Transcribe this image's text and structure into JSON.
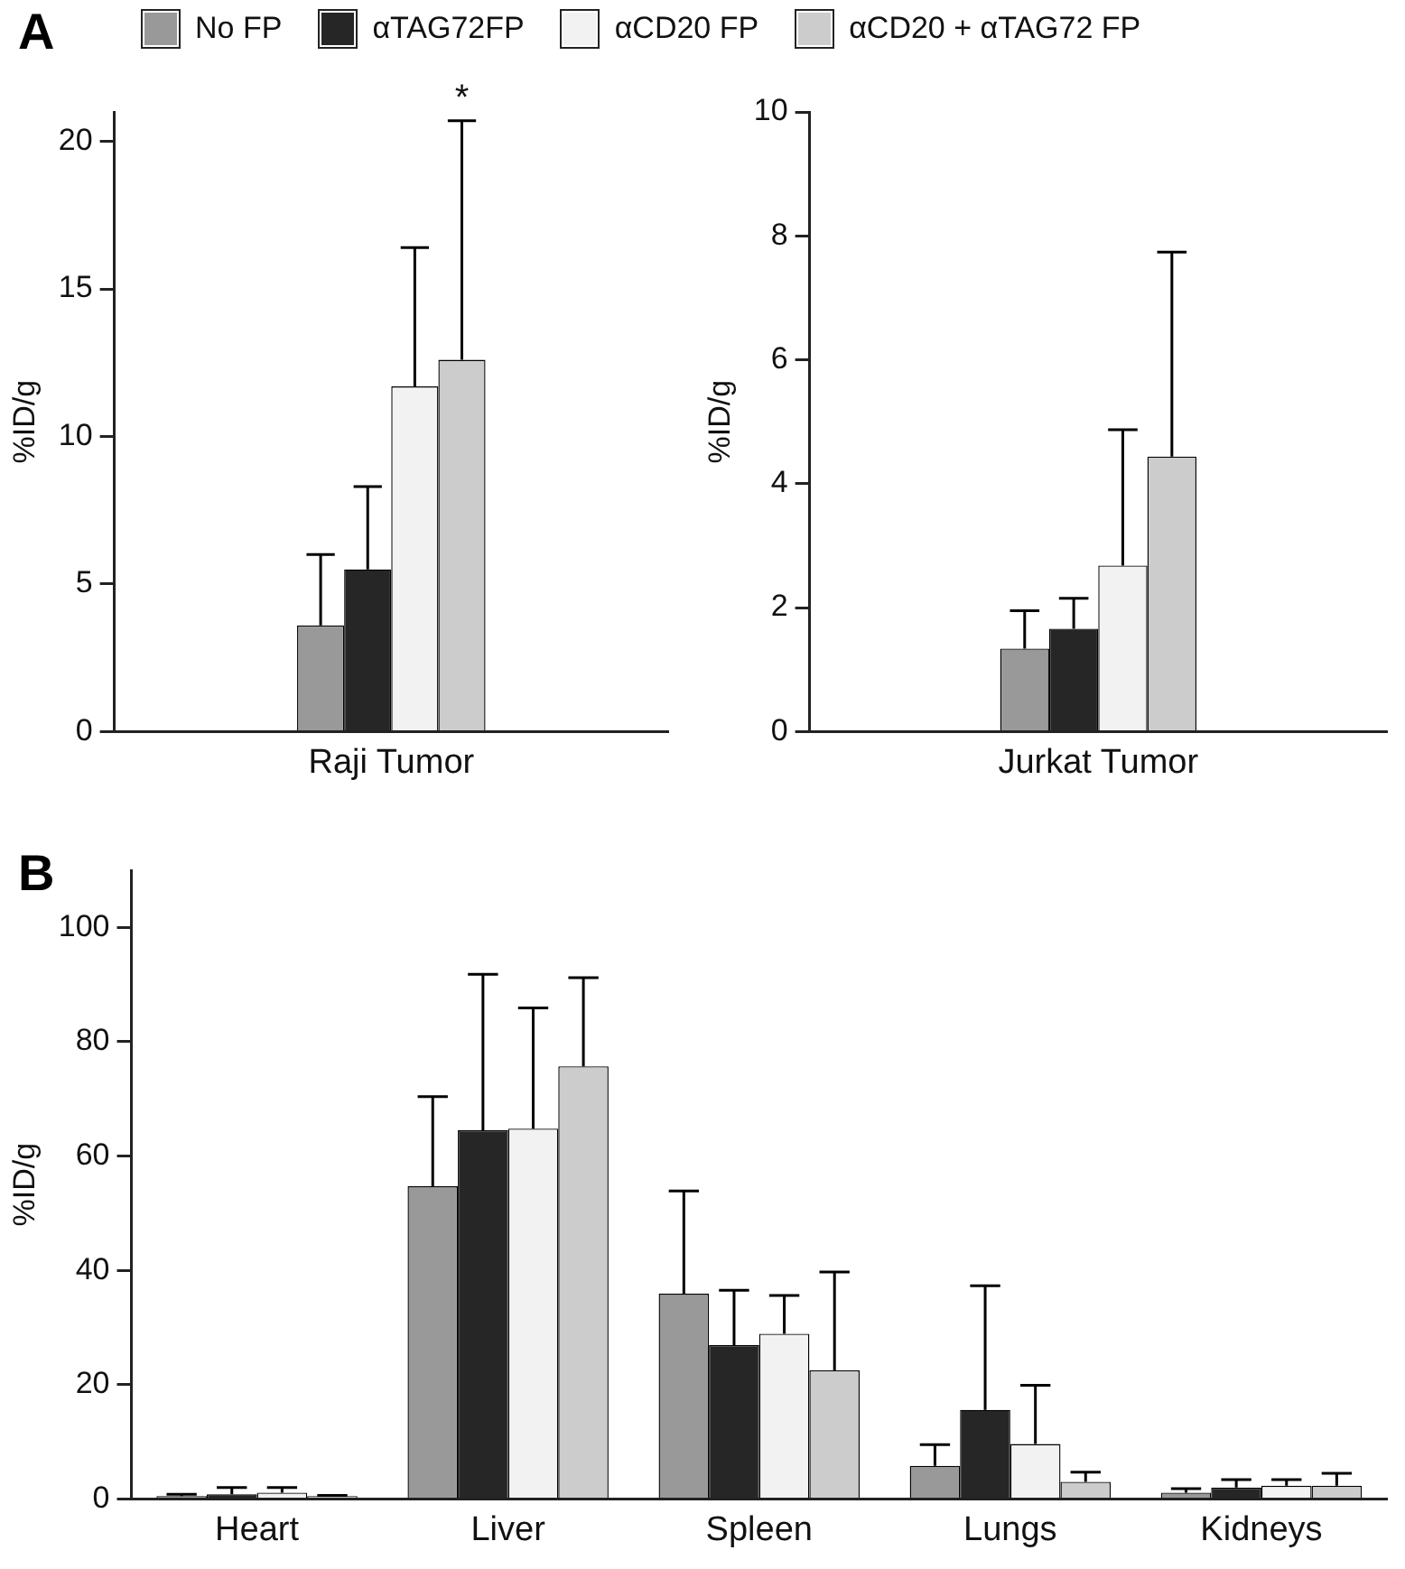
{
  "chart_data": [
    {
      "type": "bar",
      "ylabel": "%ID/g",
      "legend": "top",
      "annotations": [
        "A",
        "*"
      ],
      "categories": [
        "Raji Tumor"
      ],
      "ylim": [
        0,
        21
      ],
      "yticks": [
        0,
        5,
        10,
        15,
        20
      ],
      "series": [
        {
          "name": "No FP",
          "color": "#999999",
          "values": [
            3.6
          ],
          "errors": [
            [
              3.6,
              6.0
            ]
          ]
        },
        {
          "name": "αTAG72FP",
          "color": "#262626",
          "values": [
            5.5
          ],
          "errors": [
            [
              5.5,
              8.3
            ]
          ]
        },
        {
          "name": "αCD20 FP",
          "color": "#f2f2f2",
          "values": [
            11.7
          ],
          "errors": [
            [
              11.7,
              16.4
            ]
          ]
        },
        {
          "name": "αCD20 + αTAG72 FP",
          "color": "#cccccc",
          "values": [
            12.6
          ],
          "errors": [
            [
              12.6,
              20.7
            ]
          ]
        }
      ]
    },
    {
      "type": "bar",
      "ylabel": "%ID/g",
      "categories": [
        "Jurkat Tumor"
      ],
      "ylim": [
        0,
        10
      ],
      "yticks": [
        0,
        2,
        4,
        6,
        8,
        10
      ],
      "series": [
        {
          "color": "#999999",
          "values": [
            1.34
          ],
          "errors": [
            [
              1.34,
              1.95
            ]
          ]
        },
        {
          "color": "#262626",
          "values": [
            1.66
          ],
          "errors": [
            [
              1.66,
              2.15
            ]
          ]
        },
        {
          "color": "#f2f2f2",
          "values": [
            2.68
          ],
          "errors": [
            [
              2.68,
              4.87
            ]
          ]
        },
        {
          "color": "#cccccc",
          "values": [
            4.44
          ],
          "errors": [
            [
              4.44,
              7.74
            ]
          ]
        }
      ]
    },
    {
      "type": "bar",
      "ylabel": "%ID/g",
      "annotations": [
        "B"
      ],
      "categories": [
        "Heart",
        "Liver",
        "Spleen",
        "Lungs",
        "Kidneys"
      ],
      "ylim": [
        0,
        110
      ],
      "yticks": [
        0,
        20,
        40,
        60,
        80,
        100
      ],
      "series": [
        {
          "color": "#999999",
          "values": [
            0.5,
            54.7,
            35.9,
            5.8,
            1.1
          ],
          "errors": [
            [
              0.5,
              0.8
            ],
            [
              54.7,
              70.4
            ],
            [
              35.9,
              53.9
            ],
            [
              5.8,
              9.5
            ],
            [
              1.1,
              1.8
            ]
          ]
        },
        {
          "color": "#262626",
          "values": [
            0.8,
            64.5,
            26.9,
            15.6,
            2.0
          ],
          "errors": [
            [
              0.8,
              2.0
            ],
            [
              64.5,
              91.8
            ],
            [
              26.9,
              36.5
            ],
            [
              15.6,
              37.3
            ],
            [
              2.0,
              3.4
            ]
          ]
        },
        {
          "color": "#f2f2f2",
          "values": [
            1.1,
            64.8,
            28.9,
            9.6,
            2.3
          ],
          "errors": [
            [
              1.1,
              2.0
            ],
            [
              64.8,
              85.9
            ],
            [
              28.9,
              35.6
            ],
            [
              9.6,
              19.9
            ],
            [
              2.3,
              3.4
            ]
          ]
        },
        {
          "color": "#cccccc",
          "values": [
            0.5,
            75.7,
            22.5,
            3.0,
            2.3
          ],
          "errors": [
            [
              0.5,
              0.6
            ],
            [
              75.7,
              91.2
            ],
            [
              22.5,
              39.7
            ],
            [
              3.0,
              4.7
            ],
            [
              2.3,
              4.5
            ]
          ]
        }
      ]
    }
  ]
}
